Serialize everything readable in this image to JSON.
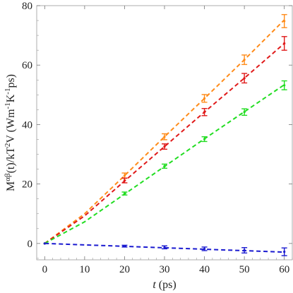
{
  "chart_data": {
    "type": "line",
    "title": "",
    "xlabel": "t (ps)",
    "ylabel": "M^{αβ}(t)/kT^{2}V (Wm^{-1}K^{-1}ps)",
    "xlim": [
      -2,
      62
    ],
    "ylim": [
      -5.5,
      80
    ],
    "xticks": [
      0,
      10,
      20,
      30,
      40,
      50,
      60
    ],
    "yticks": [
      0,
      20,
      40,
      60,
      80
    ],
    "grid": false,
    "legend": "none",
    "series": [
      {
        "color": "#ff8c1a",
        "x": [
          0,
          20,
          30,
          40,
          50,
          60
        ],
        "y": [
          0,
          22.8,
          35.9,
          48.8,
          61.8,
          74.8
        ],
        "err": [
          0,
          0.9,
          1.0,
          1.3,
          1.6,
          2.2
        ],
        "fit": {
          "x": [
            0,
            10,
            20,
            30,
            40,
            50,
            60
          ],
          "y": [
            0,
            10.0,
            22.8,
            35.9,
            48.8,
            61.8,
            75.2
          ]
        }
      },
      {
        "color": "#e01a1a",
        "x": [
          0,
          20,
          30,
          40,
          50,
          60
        ],
        "y": [
          0,
          21.2,
          32.6,
          44.2,
          55.6,
          67.3
        ],
        "err": [
          0,
          0.8,
          0.9,
          1.2,
          1.6,
          2.3
        ],
        "fit": {
          "x": [
            0,
            10,
            20,
            30,
            40,
            50,
            60
          ],
          "y": [
            0,
            9.3,
            21.0,
            32.6,
            44.2,
            55.6,
            67.3
          ]
        }
      },
      {
        "color": "#22dd22",
        "x": [
          0,
          20,
          30,
          40,
          50,
          60
        ],
        "y": [
          0,
          16.8,
          26.0,
          35.1,
          44.2,
          53.2
        ],
        "err": [
          0,
          0.5,
          0.7,
          0.8,
          1.1,
          1.5
        ],
        "fit": {
          "x": [
            0,
            10,
            20,
            30,
            40,
            50,
            60
          ],
          "y": [
            0,
            7.3,
            16.6,
            25.9,
            35.2,
            44.3,
            53.4
          ]
        }
      },
      {
        "color": "#1a1ad0",
        "x": [
          0,
          20,
          30,
          40,
          50,
          60
        ],
        "y": [
          0,
          -0.9,
          -1.3,
          -1.8,
          -2.3,
          -2.8
        ],
        "err": [
          0,
          0.3,
          0.5,
          0.6,
          0.9,
          1.3
        ],
        "fit": {
          "x": [
            0,
            60
          ],
          "y": [
            0,
            -2.9
          ]
        }
      }
    ]
  }
}
